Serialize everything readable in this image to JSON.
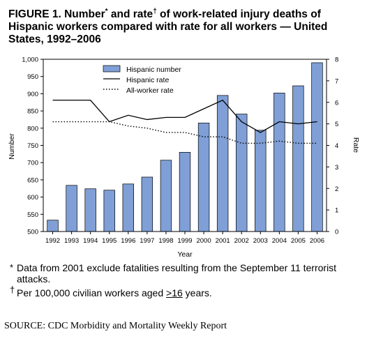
{
  "figure": {
    "title_main": "FIGURE 1. Number",
    "title_mark1": "*",
    "title_mid": " and rate",
    "title_mark2": "†",
    "title_rest": " of work-related injury deaths of Hispanic workers compared with rate for all workers — United States, 1992–2006"
  },
  "chart_data": {
    "type": "bar",
    "categories": [
      "1992",
      "1993",
      "1994",
      "1995",
      "1996",
      "1997",
      "1998",
      "1999",
      "2000",
      "2001",
      "2002",
      "2003",
      "2004",
      "2005",
      "2006"
    ],
    "series": [
      {
        "name": "Hispanic number",
        "kind": "bar",
        "axis": "left",
        "values": [
          533,
          634,
          624,
          620,
          638,
          658,
          707,
          730,
          815,
          895,
          841,
          794,
          902,
          923,
          990
        ]
      },
      {
        "name": "Hispanic rate",
        "kind": "line",
        "style": "solid",
        "axis": "right",
        "values": [
          6.1,
          6.1,
          6.1,
          5.1,
          5.4,
          5.2,
          5.3,
          5.3,
          5.7,
          6.1,
          5.1,
          4.6,
          5.1,
          5.0,
          5.1
        ]
      },
      {
        "name": "All-worker rate",
        "kind": "line",
        "style": "dotted",
        "axis": "right",
        "values": [
          5.1,
          5.1,
          5.1,
          5.1,
          4.9,
          4.8,
          4.6,
          4.6,
          4.4,
          4.4,
          4.1,
          4.1,
          4.2,
          4.1,
          4.1
        ]
      }
    ],
    "xlabel": "Year",
    "ylabel": "Number",
    "y2label": "Rate",
    "ylim": [
      500,
      1000
    ],
    "y2lim": [
      0,
      8
    ],
    "yticks": [
      "500",
      "550",
      "600",
      "650",
      "700",
      "750",
      "800",
      "850",
      "900",
      "950",
      "1,000"
    ],
    "y2ticks": [
      "0",
      "1",
      "2",
      "3",
      "4",
      "5",
      "6",
      "7",
      "8"
    ],
    "legend_position": "top-center",
    "grid": false,
    "colors": {
      "bar_fill": "#7f9fd6",
      "bar_stroke": "#000000",
      "line": "#000000"
    }
  },
  "footnotes": [
    {
      "mark": "*",
      "text": "Data from 2001 exclude fatalities resulting from the September 11 terrorist attacks."
    },
    {
      "mark": "†",
      "text_before": "Per 100,000 civilian workers aged ",
      "text_emph": ">16",
      "text_after": " years."
    }
  ],
  "source": "SOURCE: CDC Morbidity and Mortality Weekly Report"
}
